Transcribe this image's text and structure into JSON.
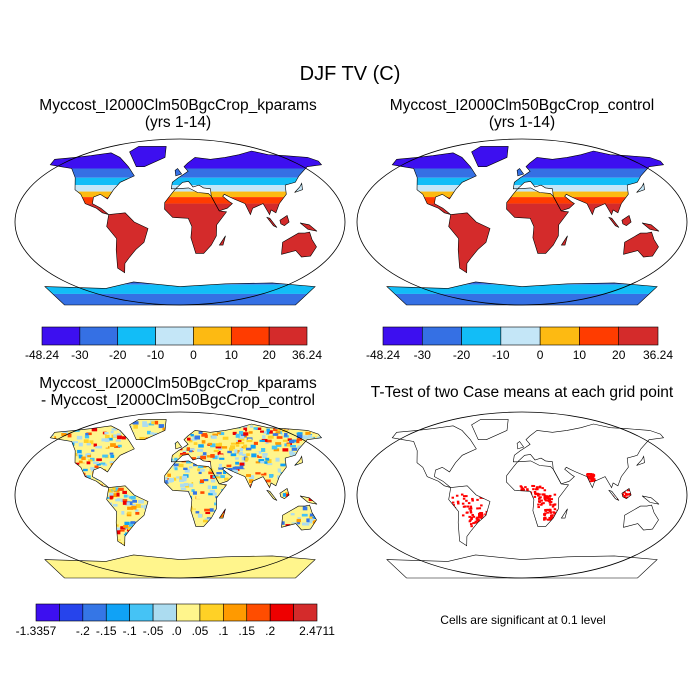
{
  "title": "DJF TV (C)",
  "panels": [
    {
      "title_line1": "Myccost_I2000Clm50BgcCrop_kparams",
      "title_line2": "(yrs 1-14)"
    },
    {
      "title_line1": "Myccost_I2000Clm50BgcCrop_control",
      "title_line2": "(yrs 1-14)"
    },
    {
      "title_line1": "Myccost_I2000Clm50BgcCrop_kparams",
      "title_line2": "- Myccost_I2000Clm50BgcCrop_control"
    },
    {
      "title_line1": "T-Test of two Case means at each grid point"
    }
  ],
  "colorbar_top": {
    "labels": [
      "-48.24",
      "-30",
      "-20",
      "-10",
      "0",
      "10",
      "20",
      "36.24"
    ],
    "colors": [
      "#3d0ff0",
      "#3570e4",
      "#12bdf7",
      "#c4e6f7",
      "#fdba12",
      "#ff3c00",
      "#d42b2b"
    ]
  },
  "colorbar_diff": {
    "labels": [
      "-1.3357",
      "-.2",
      "-.15",
      "-.1",
      "-.05",
      ".0",
      ".05",
      ".1",
      ".15",
      ".2",
      "2.4711"
    ],
    "colors": [
      "#3d0ff0",
      "#2644ec",
      "#3576e6",
      "#10a2f6",
      "#45c3f5",
      "#acdcf0",
      "#fff58c",
      "#ffd126",
      "#ff9a00",
      "#ff4d00",
      "#ee0000",
      "#d42b2b"
    ]
  },
  "significance_color": "#ff0000",
  "footnote": "Cells are significant at 0.1 level"
}
